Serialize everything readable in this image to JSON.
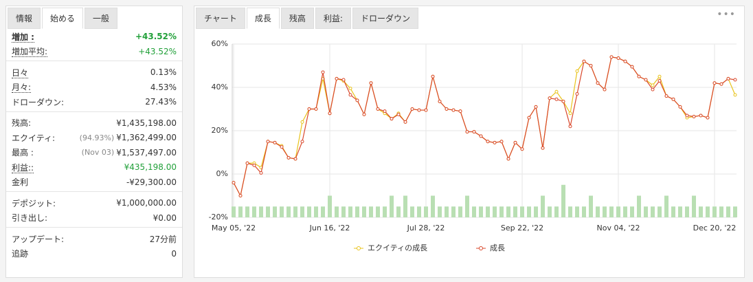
{
  "left_tabs": {
    "items": [
      "情報",
      "始める",
      "一般"
    ],
    "active": 1
  },
  "stats": [
    [
      {
        "label": "増加 :",
        "value": "+43.52%",
        "color": "#22a03a",
        "bold": true,
        "dotted": true
      },
      {
        "label": "増加平均:",
        "value": "+43.52%",
        "color": "#22a03a",
        "dotted": true
      }
    ],
    [
      {
        "label": "日々",
        "value": "0.13%",
        "dotted": true
      },
      {
        "label": "月々:",
        "value": "4.53%",
        "dotted": true
      },
      {
        "label": "ドローダウン:",
        "value": "27.43%"
      }
    ],
    [
      {
        "label": "残高:",
        "value": "¥1,435,198.00"
      },
      {
        "label": "エクイティ:",
        "note": "(94.93%)",
        "value": "¥1,362,499.00"
      },
      {
        "label": "最高 :",
        "note": "(Nov 03)",
        "value": "¥1,537,497.00"
      },
      {
        "label": "利益::",
        "value": "¥435,198.00",
        "color": "#22a03a",
        "dotted": true
      },
      {
        "label": "金利",
        "value": "-¥29,300.00"
      }
    ],
    [
      {
        "label": "デポジット:",
        "value": "¥1,000,000.00"
      },
      {
        "label": "引き出し:",
        "value": "¥0.00"
      }
    ],
    [
      {
        "label": "アップデート:",
        "value": "27分前"
      },
      {
        "label": "追跡",
        "value": "0"
      }
    ]
  ],
  "right_tabs": {
    "items": [
      "チャート",
      "成長",
      "残高",
      "利益:",
      "ドローダウン"
    ],
    "active": 1
  },
  "chart_data": {
    "type": "line",
    "categories": [
      "May 05, '22",
      null,
      null,
      null,
      null,
      null,
      null,
      null,
      null,
      null,
      null,
      null,
      null,
      null,
      "Jun 16, '22",
      null,
      null,
      null,
      null,
      null,
      null,
      null,
      null,
      null,
      null,
      null,
      null,
      null,
      "Jul 28, '22",
      null,
      null,
      null,
      null,
      null,
      null,
      null,
      null,
      null,
      null,
      null,
      null,
      null,
      "Sep 22, '22",
      null,
      null,
      null,
      null,
      null,
      null,
      null,
      null,
      null,
      null,
      null,
      null,
      null,
      "Nov 04, '22",
      null,
      null,
      null,
      null,
      null,
      null,
      null,
      null,
      null,
      null,
      null,
      null,
      null,
      "Dec 20, '22",
      null,
      null,
      null
    ],
    "series": [
      {
        "name": "エクイティの成長",
        "color": "#e8c31a",
        "values": [
          -4,
          -10,
          5,
          5,
          3,
          15,
          14.5,
          13,
          7.5,
          7,
          24,
          30,
          30,
          44,
          28,
          44,
          43,
          39.5,
          34,
          27.5,
          42,
          30,
          28,
          25.5,
          28,
          24,
          30,
          29.5,
          29.5,
          45,
          33.5,
          30,
          29.5,
          29,
          19.5,
          19.5,
          17.5,
          15,
          14.5,
          15,
          7,
          14.5,
          11.5,
          26,
          31,
          12,
          35,
          38,
          33.5,
          28,
          47.5,
          52,
          50,
          42,
          39,
          54,
          53.5,
          52,
          49.5,
          45,
          43.5,
          41,
          45,
          36,
          34.5,
          31,
          26,
          26.5,
          27,
          26,
          42,
          41.5,
          44,
          36.5
        ]
      },
      {
        "name": "成長",
        "color": "#d9472b",
        "values": [
          -4,
          -10,
          5,
          4,
          0.5,
          15,
          14.5,
          12.5,
          7.5,
          7,
          15,
          30,
          30,
          47,
          28,
          44,
          43.5,
          36.5,
          34,
          27.5,
          42,
          30,
          29,
          25.5,
          27.5,
          24,
          30,
          29.5,
          29.5,
          45,
          33.5,
          30,
          29.5,
          29,
          19.5,
          19.5,
          17.5,
          15,
          14.5,
          15,
          7,
          14.5,
          11.5,
          26,
          31,
          12,
          35,
          34.5,
          33.5,
          22,
          37,
          52,
          50,
          42,
          39,
          54,
          53.5,
          52,
          49.5,
          45,
          43.5,
          39,
          43,
          36,
          34.5,
          31,
          27,
          26.5,
          27,
          26,
          42,
          41.5,
          44,
          43.5
        ]
      },
      {
        "type": "bar",
        "color": "#b9dfb3",
        "values": [
          -15,
          -15,
          -15,
          -15,
          -15,
          -15,
          -15,
          -15,
          -15,
          -15,
          -15,
          -15,
          -15,
          -15,
          -10,
          -15,
          -15,
          -15,
          -15,
          -15,
          -15,
          -15,
          -15,
          -10,
          -15,
          -10,
          -15,
          -15,
          -15,
          -10,
          -15,
          -15,
          -15,
          -15,
          -10,
          -15,
          -15,
          -15,
          -15,
          -15,
          -15,
          -15,
          -15,
          -15,
          -15,
          -10,
          -15,
          -15,
          -5,
          -15,
          -15,
          -15,
          -10,
          -15,
          -15,
          -15,
          -15,
          -15,
          -15,
          -10,
          -15,
          -15,
          -15,
          -10,
          -15,
          -15,
          -15,
          -10,
          -15,
          -15,
          -15,
          -15,
          -15,
          -15
        ]
      }
    ],
    "ylim": [
      -20,
      60
    ],
    "yticks": [
      {
        "value": -20,
        "label": "-20%"
      },
      {
        "value": 0,
        "label": "0%"
      },
      {
        "value": 20,
        "label": "20%"
      },
      {
        "value": 40,
        "label": "40%"
      },
      {
        "value": 60,
        "label": "60%"
      }
    ],
    "grid": true,
    "legend": "bottom"
  }
}
